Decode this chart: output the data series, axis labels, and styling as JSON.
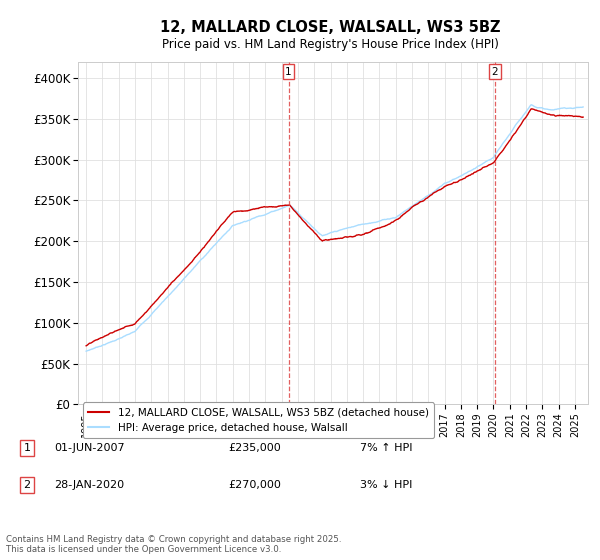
{
  "title_line1": "12, MALLARD CLOSE, WALSALL, WS3 5BZ",
  "title_line2": "Price paid vs. HM Land Registry's House Price Index (HPI)",
  "legend_line1": "12, MALLARD CLOSE, WALSALL, WS3 5BZ (detached house)",
  "legend_line2": "HPI: Average price, detached house, Walsall",
  "annotation1_label": "1",
  "annotation1_date": "01-JUN-2007",
  "annotation1_price": "£235,000",
  "annotation1_hpi": "7% ↑ HPI",
  "annotation2_label": "2",
  "annotation2_date": "28-JAN-2020",
  "annotation2_price": "£270,000",
  "annotation2_hpi": "3% ↓ HPI",
  "footer": "Contains HM Land Registry data © Crown copyright and database right 2025.\nThis data is licensed under the Open Government Licence v3.0.",
  "price_color": "#cc0000",
  "hpi_color": "#aaddff",
  "background_color": "#ffffff",
  "grid_color": "#e0e0e0",
  "ylim": [
    0,
    420000
  ],
  "yticks": [
    0,
    50000,
    100000,
    150000,
    200000,
    250000,
    300000,
    350000,
    400000
  ],
  "ytick_labels": [
    "£0",
    "£50K",
    "£100K",
    "£150K",
    "£200K",
    "£250K",
    "£300K",
    "£350K",
    "£400K"
  ],
  "marker1_x": 2007.42,
  "marker2_x": 2020.08,
  "xmin": 1994.5,
  "xmax": 2025.8,
  "vline_color": "#dd4444"
}
